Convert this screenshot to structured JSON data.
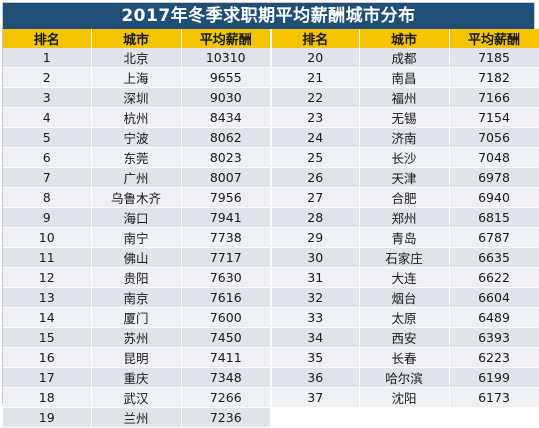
{
  "chart_data": {
    "type": "table",
    "title": "2017年冬季求职期平均薪酬城市分布",
    "columns": [
      "排名",
      "城市",
      "平均薪酬"
    ],
    "rows": [
      {
        "rank": "1",
        "city": "北京",
        "salary": "10310"
      },
      {
        "rank": "2",
        "city": "上海",
        "salary": "9655"
      },
      {
        "rank": "3",
        "city": "深圳",
        "salary": "9030"
      },
      {
        "rank": "4",
        "city": "杭州",
        "salary": "8434"
      },
      {
        "rank": "5",
        "city": "宁波",
        "salary": "8062"
      },
      {
        "rank": "6",
        "city": "东莞",
        "salary": "8023"
      },
      {
        "rank": "7",
        "city": "广州",
        "salary": "8007"
      },
      {
        "rank": "8",
        "city": "乌鲁木齐",
        "salary": "7956"
      },
      {
        "rank": "9",
        "city": "海口",
        "salary": "7941"
      },
      {
        "rank": "10",
        "city": "南宁",
        "salary": "7738"
      },
      {
        "rank": "11",
        "city": "佛山",
        "salary": "7717"
      },
      {
        "rank": "12",
        "city": "贵阳",
        "salary": "7630"
      },
      {
        "rank": "13",
        "city": "南京",
        "salary": "7616"
      },
      {
        "rank": "14",
        "city": "厦门",
        "salary": "7600"
      },
      {
        "rank": "15",
        "city": "苏州",
        "salary": "7450"
      },
      {
        "rank": "16",
        "city": "昆明",
        "salary": "7411"
      },
      {
        "rank": "17",
        "city": "重庆",
        "salary": "7348"
      },
      {
        "rank": "18",
        "city": "武汉",
        "salary": "7266"
      },
      {
        "rank": "19",
        "city": "兰州",
        "salary": "7236"
      },
      {
        "rank": "20",
        "city": "成都",
        "salary": "7185"
      },
      {
        "rank": "21",
        "city": "南昌",
        "salary": "7182"
      },
      {
        "rank": "22",
        "city": "福州",
        "salary": "7166"
      },
      {
        "rank": "23",
        "city": "无锡",
        "salary": "7154"
      },
      {
        "rank": "24",
        "city": "济南",
        "salary": "7056"
      },
      {
        "rank": "25",
        "city": "长沙",
        "salary": "7048"
      },
      {
        "rank": "26",
        "city": "天津",
        "salary": "6978"
      },
      {
        "rank": "27",
        "city": "合肥",
        "salary": "6940"
      },
      {
        "rank": "28",
        "city": "郑州",
        "salary": "6815"
      },
      {
        "rank": "29",
        "city": "青岛",
        "salary": "6787"
      },
      {
        "rank": "30",
        "city": "石家庄",
        "salary": "6635"
      },
      {
        "rank": "31",
        "city": "大连",
        "salary": "6622"
      },
      {
        "rank": "32",
        "city": "烟台",
        "salary": "6604"
      },
      {
        "rank": "33",
        "city": "太原",
        "salary": "6489"
      },
      {
        "rank": "34",
        "city": "西安",
        "salary": "6393"
      },
      {
        "rank": "35",
        "city": "长春",
        "salary": "6223"
      },
      {
        "rank": "36",
        "city": "哈尔滨",
        "salary": "6199"
      },
      {
        "rank": "37",
        "city": "沈阳",
        "salary": "6173"
      }
    ]
  },
  "colors": {
    "title_bg": "#1f4e78",
    "header_bg": "#f5c400",
    "row_odd": "#dfe3ea",
    "row_even": "#eef0f4"
  }
}
